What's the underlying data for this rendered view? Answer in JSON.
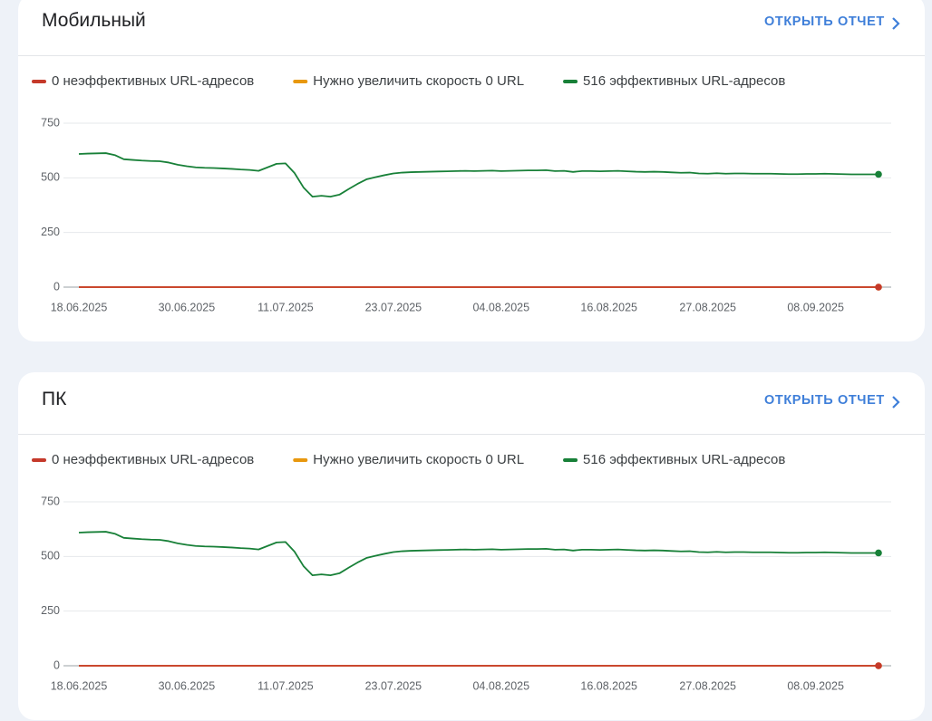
{
  "cards": [
    {
      "title": "Мобильный",
      "link": "ОТКРЫТЬ ОТЧЕТ"
    },
    {
      "title": "ПК",
      "link": "ОТКРЫТЬ ОТЧЕТ"
    }
  ],
  "chart_data": [
    {
      "type": "line",
      "x": [
        "18.06.2025",
        "19.06.2025",
        "20.06.2025",
        "21.06.2025",
        "22.06.2025",
        "23.06.2025",
        "24.06.2025",
        "25.06.2025",
        "26.06.2025",
        "27.06.2025",
        "28.06.2025",
        "29.06.2025",
        "30.06.2025",
        "01.07.2025",
        "02.07.2025",
        "03.07.2025",
        "04.07.2025",
        "05.07.2025",
        "06.07.2025",
        "07.07.2025",
        "08.07.2025",
        "09.07.2025",
        "10.07.2025",
        "11.07.2025",
        "12.07.2025",
        "13.07.2025",
        "14.07.2025",
        "15.07.2025",
        "16.07.2025",
        "17.07.2025",
        "18.07.2025",
        "19.07.2025",
        "20.07.2025",
        "21.07.2025",
        "22.07.2025",
        "23.07.2025",
        "24.07.2025",
        "25.07.2025",
        "26.07.2025",
        "27.07.2025",
        "28.07.2025",
        "29.07.2025",
        "30.07.2025",
        "31.07.2025",
        "01.08.2025",
        "02.08.2025",
        "03.08.2025",
        "04.08.2025",
        "05.08.2025",
        "06.08.2025",
        "07.08.2025",
        "08.08.2025",
        "09.08.2025",
        "10.08.2025",
        "11.08.2025",
        "12.08.2025",
        "13.08.2025",
        "14.08.2025",
        "15.08.2025",
        "16.08.2025",
        "17.08.2025",
        "18.08.2025",
        "19.08.2025",
        "20.08.2025",
        "21.08.2025",
        "22.08.2025",
        "23.08.2025",
        "24.08.2025",
        "25.08.2025",
        "26.08.2025",
        "27.08.2025",
        "28.08.2025",
        "29.08.2025",
        "30.08.2025",
        "31.08.2025",
        "01.09.2025",
        "02.09.2025",
        "03.09.2025",
        "04.09.2025",
        "05.09.2025",
        "06.09.2025",
        "07.09.2025",
        "08.09.2025",
        "09.09.2025",
        "10.09.2025",
        "11.09.2025",
        "12.09.2025",
        "13.09.2025",
        "14.09.2025",
        "15.09.2025"
      ],
      "xticks": [
        "18.06.2025",
        "30.06.2025",
        "11.07.2025",
        "23.07.2025",
        "04.08.2025",
        "16.08.2025",
        "27.08.2025",
        "08.09.2025"
      ],
      "ylim": [
        0,
        750
      ],
      "yticks": [
        0,
        250,
        500,
        750
      ],
      "grid": true,
      "series": [
        {
          "name": "0 неэффективных URL-адресов",
          "color": "#c5392a",
          "values": [
            0,
            0,
            0,
            0,
            0,
            0,
            0,
            0,
            0,
            0,
            0,
            0,
            0,
            0,
            0,
            0,
            0,
            0,
            0,
            0,
            0,
            0,
            0,
            0,
            0,
            0,
            0,
            0,
            0,
            0,
            0,
            0,
            0,
            0,
            0,
            0,
            0,
            0,
            0,
            0,
            0,
            0,
            0,
            0,
            0,
            0,
            0,
            0,
            0,
            0,
            0,
            0,
            0,
            0,
            0,
            0,
            0,
            0,
            0,
            0,
            0,
            0,
            0,
            0,
            0,
            0,
            0,
            0,
            0,
            0,
            0,
            0,
            0,
            0,
            0,
            0,
            0,
            0,
            0,
            0,
            0,
            0,
            0,
            0,
            0,
            0,
            0,
            0,
            0,
            0
          ]
        },
        {
          "name": "Нужно увеличить скорость 0 URL",
          "color": "#e8980e",
          "values": [
            0,
            0,
            0,
            0,
            0,
            0,
            0,
            0,
            0,
            0,
            0,
            0,
            0,
            0,
            0,
            0,
            0,
            0,
            0,
            0,
            0,
            0,
            0,
            0,
            0,
            0,
            0,
            0,
            0,
            0,
            0,
            0,
            0,
            0,
            0,
            0,
            0,
            0,
            0,
            0,
            0,
            0,
            0,
            0,
            0,
            0,
            0,
            0,
            0,
            0,
            0,
            0,
            0,
            0,
            0,
            0,
            0,
            0,
            0,
            0,
            0,
            0,
            0,
            0,
            0,
            0,
            0,
            0,
            0,
            0,
            0,
            0,
            0,
            0,
            0,
            0,
            0,
            0,
            0,
            0,
            0,
            0,
            0,
            0,
            0,
            0,
            0,
            0,
            0,
            0
          ]
        },
        {
          "name": "516 эффективных URL-адресов",
          "color": "#188038",
          "values": [
            609,
            611,
            612,
            613,
            604,
            585,
            582,
            579,
            577,
            576,
            570,
            560,
            553,
            548,
            546,
            545,
            543,
            541,
            538,
            536,
            532,
            548,
            564,
            566,
            522,
            456,
            414,
            418,
            414,
            423,
            448,
            472,
            493,
            503,
            512,
            520,
            524,
            526,
            527,
            528,
            529,
            530,
            531,
            532,
            531,
            532,
            533,
            531,
            532,
            533,
            534,
            534,
            535,
            531,
            532,
            527,
            531,
            531,
            530,
            531,
            532,
            530,
            528,
            527,
            528,
            527,
            525,
            523,
            524,
            520,
            519,
            521,
            519,
            520,
            520,
            519,
            519,
            519,
            518,
            517,
            517,
            518,
            518,
            519,
            518,
            517,
            516,
            516,
            516,
            516
          ]
        }
      ]
    },
    {
      "type": "line",
      "x": [
        "18.06.2025",
        "19.06.2025",
        "20.06.2025",
        "21.06.2025",
        "22.06.2025",
        "23.06.2025",
        "24.06.2025",
        "25.06.2025",
        "26.06.2025",
        "27.06.2025",
        "28.06.2025",
        "29.06.2025",
        "30.06.2025",
        "01.07.2025",
        "02.07.2025",
        "03.07.2025",
        "04.07.2025",
        "05.07.2025",
        "06.07.2025",
        "07.07.2025",
        "08.07.2025",
        "09.07.2025",
        "10.07.2025",
        "11.07.2025",
        "12.07.2025",
        "13.07.2025",
        "14.07.2025",
        "15.07.2025",
        "16.07.2025",
        "17.07.2025",
        "18.07.2025",
        "19.07.2025",
        "20.07.2025",
        "21.07.2025",
        "22.07.2025",
        "23.07.2025",
        "24.07.2025",
        "25.07.2025",
        "26.07.2025",
        "27.07.2025",
        "28.07.2025",
        "29.07.2025",
        "30.07.2025",
        "31.07.2025",
        "01.08.2025",
        "02.08.2025",
        "03.08.2025",
        "04.08.2025",
        "05.08.2025",
        "06.08.2025",
        "07.08.2025",
        "08.08.2025",
        "09.08.2025",
        "10.08.2025",
        "11.08.2025",
        "12.08.2025",
        "13.08.2025",
        "14.08.2025",
        "15.08.2025",
        "16.08.2025",
        "17.08.2025",
        "18.08.2025",
        "19.08.2025",
        "20.08.2025",
        "21.08.2025",
        "22.08.2025",
        "23.08.2025",
        "24.08.2025",
        "25.08.2025",
        "26.08.2025",
        "27.08.2025",
        "28.08.2025",
        "29.08.2025",
        "30.08.2025",
        "31.08.2025",
        "01.09.2025",
        "02.09.2025",
        "03.09.2025",
        "04.09.2025",
        "05.09.2025",
        "06.09.2025",
        "07.09.2025",
        "08.09.2025",
        "09.09.2025",
        "10.09.2025",
        "11.09.2025",
        "12.09.2025",
        "13.09.2025",
        "14.09.2025",
        "15.09.2025"
      ],
      "xticks": [
        "18.06.2025",
        "30.06.2025",
        "11.07.2025",
        "23.07.2025",
        "04.08.2025",
        "16.08.2025",
        "27.08.2025",
        "08.09.2025"
      ],
      "ylim": [
        0,
        750
      ],
      "yticks": [
        0,
        250,
        500,
        750
      ],
      "grid": true,
      "series": [
        {
          "name": "0 неэффективных URL-адресов",
          "color": "#c5392a",
          "values": [
            0,
            0,
            0,
            0,
            0,
            0,
            0,
            0,
            0,
            0,
            0,
            0,
            0,
            0,
            0,
            0,
            0,
            0,
            0,
            0,
            0,
            0,
            0,
            0,
            0,
            0,
            0,
            0,
            0,
            0,
            0,
            0,
            0,
            0,
            0,
            0,
            0,
            0,
            0,
            0,
            0,
            0,
            0,
            0,
            0,
            0,
            0,
            0,
            0,
            0,
            0,
            0,
            0,
            0,
            0,
            0,
            0,
            0,
            0,
            0,
            0,
            0,
            0,
            0,
            0,
            0,
            0,
            0,
            0,
            0,
            0,
            0,
            0,
            0,
            0,
            0,
            0,
            0,
            0,
            0,
            0,
            0,
            0,
            0,
            0,
            0,
            0,
            0,
            0,
            0
          ]
        },
        {
          "name": "Нужно увеличить скорость 0 URL",
          "color": "#e8980e",
          "values": [
            0,
            0,
            0,
            0,
            0,
            0,
            0,
            0,
            0,
            0,
            0,
            0,
            0,
            0,
            0,
            0,
            0,
            0,
            0,
            0,
            0,
            0,
            0,
            0,
            0,
            0,
            0,
            0,
            0,
            0,
            0,
            0,
            0,
            0,
            0,
            0,
            0,
            0,
            0,
            0,
            0,
            0,
            0,
            0,
            0,
            0,
            0,
            0,
            0,
            0,
            0,
            0,
            0,
            0,
            0,
            0,
            0,
            0,
            0,
            0,
            0,
            0,
            0,
            0,
            0,
            0,
            0,
            0,
            0,
            0,
            0,
            0,
            0,
            0,
            0,
            0,
            0,
            0,
            0,
            0,
            0,
            0,
            0,
            0,
            0,
            0,
            0,
            0,
            0,
            0
          ]
        },
        {
          "name": "516 эффективных URL-адресов",
          "color": "#188038",
          "values": [
            609,
            611,
            612,
            613,
            604,
            585,
            582,
            579,
            577,
            576,
            570,
            560,
            553,
            548,
            546,
            545,
            543,
            541,
            538,
            536,
            532,
            548,
            564,
            566,
            522,
            456,
            414,
            418,
            414,
            423,
            448,
            472,
            493,
            503,
            512,
            520,
            524,
            526,
            527,
            528,
            529,
            530,
            531,
            532,
            531,
            532,
            533,
            531,
            532,
            533,
            534,
            534,
            535,
            531,
            532,
            527,
            531,
            531,
            530,
            531,
            532,
            530,
            528,
            527,
            528,
            527,
            525,
            523,
            524,
            520,
            519,
            521,
            519,
            520,
            520,
            519,
            519,
            519,
            518,
            517,
            517,
            518,
            518,
            519,
            518,
            517,
            516,
            516,
            516,
            516
          ]
        }
      ]
    }
  ]
}
